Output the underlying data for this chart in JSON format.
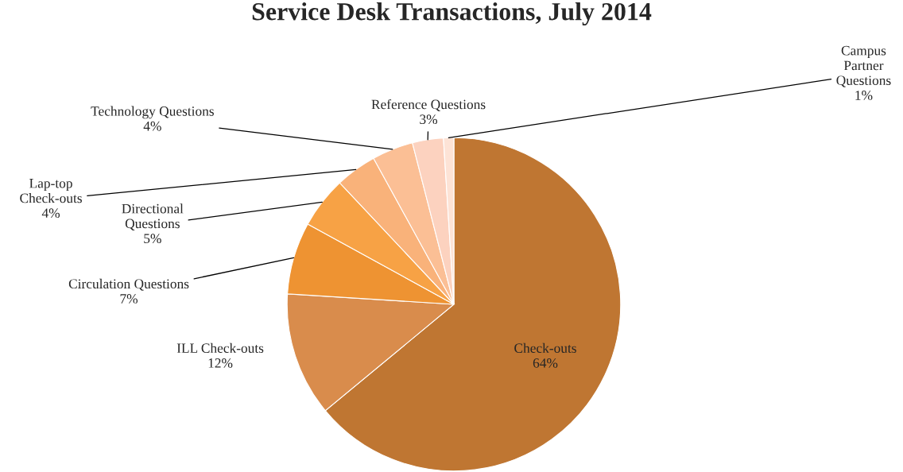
{
  "chart_data": {
    "type": "pie",
    "title": "Service Desk Transactions, July 2014",
    "categories": [
      "Check-outs",
      "ILL Check-outs",
      "Circulation Questions",
      "Directional\nQuestions",
      "Lap-top\nCheck-outs",
      "Technology Questions",
      "Reference Questions",
      "Campus\nPartner\nQuestions"
    ],
    "values": [
      64,
      12,
      7,
      5,
      4,
      4,
      3,
      1
    ],
    "colors": [
      "#bf7632",
      "#d98c4c",
      "#ee9332",
      "#f7a245",
      "#f9b27a",
      "#fbbf95",
      "#fcd2bf",
      "#fde3d6"
    ],
    "value_labels": [
      "64%",
      "12%",
      "7%",
      "5%",
      "4%",
      "4%",
      "3%",
      "1%"
    ],
    "legend": false
  }
}
